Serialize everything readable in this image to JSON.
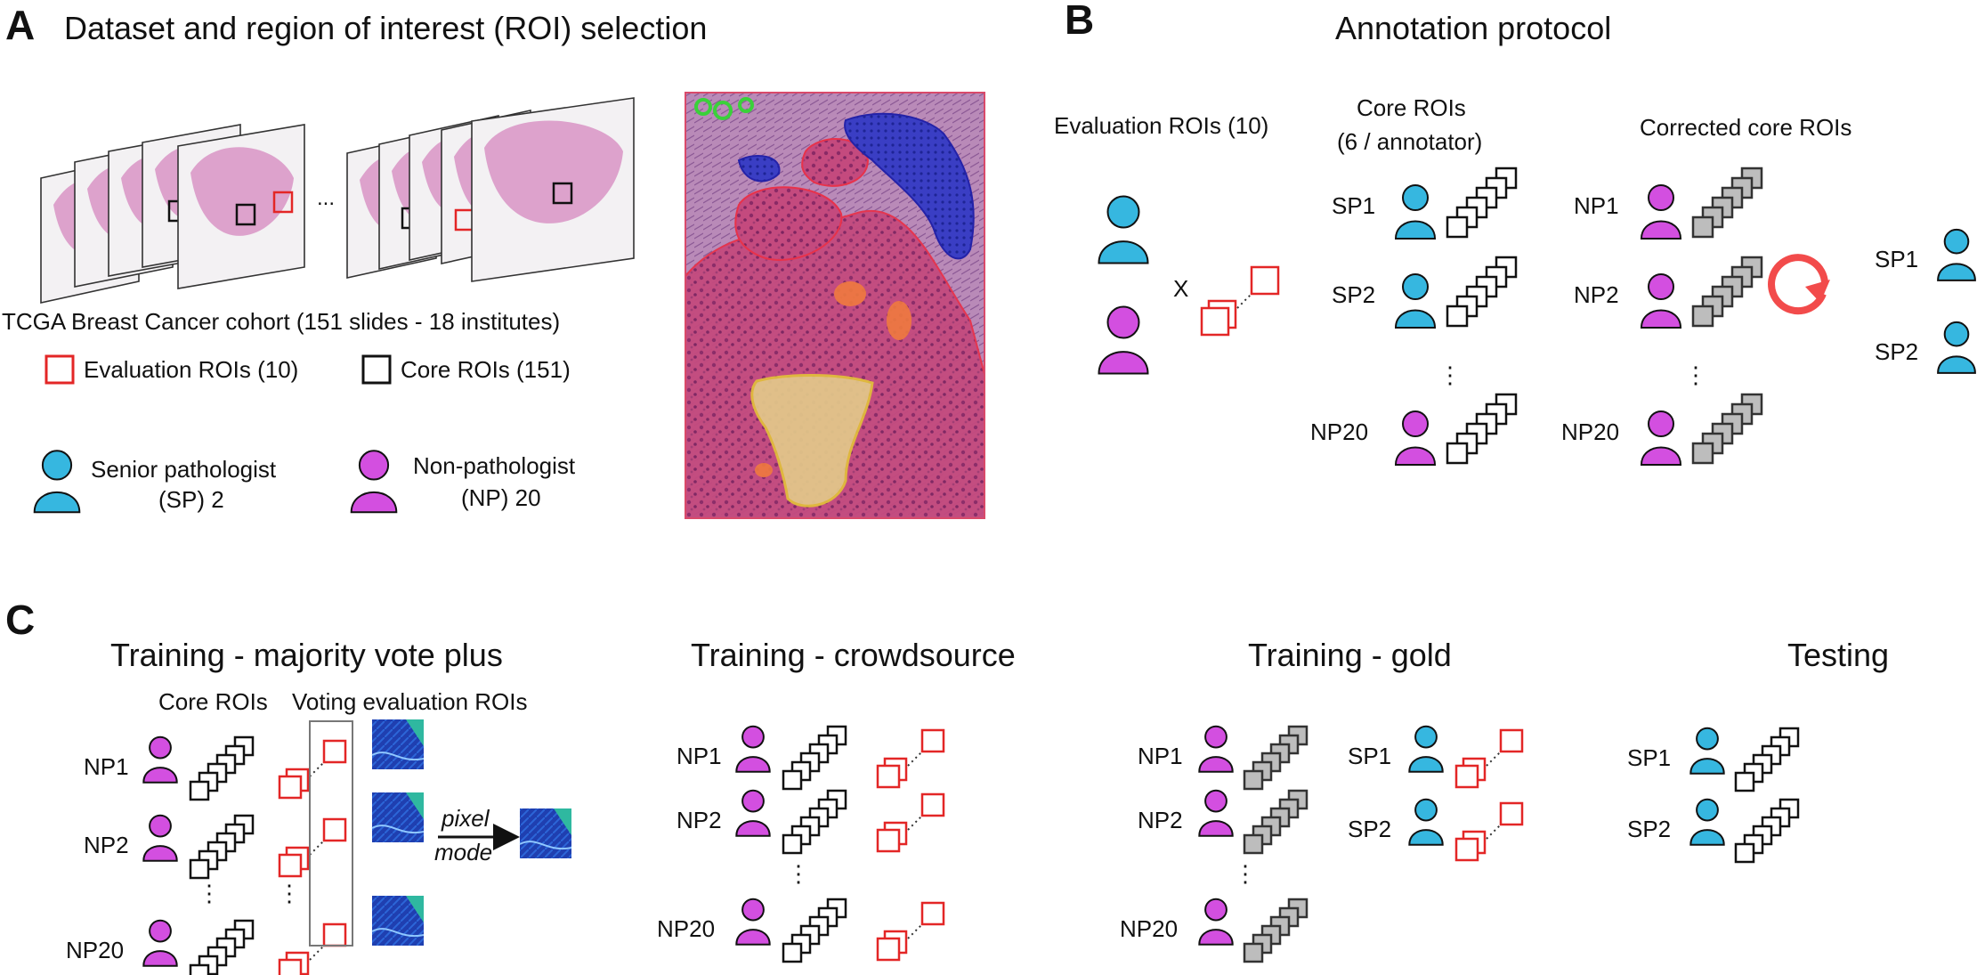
{
  "colors": {
    "senior": "#36B7E0",
    "non_pathologist": "#D34FE0",
    "evaluation_roi": "#E32626",
    "core_roi": "#111111",
    "corrected_fill": "#BDBDBD",
    "cycle_arrow": "#F24B4B"
  },
  "panel_a": {
    "letter": "A",
    "title": "Dataset and region of interest (ROI) selection",
    "ellipsis": "...",
    "cohort_label": "TCGA Breast Cancer cohort (151 slides - 18 institutes)",
    "legend_eval": "Evaluation ROIs (10)",
    "legend_core": "Core ROIs (151)",
    "senior_line1": "Senior pathologist",
    "senior_line2": "(SP) 2",
    "np_line1": "Non-pathologist",
    "np_line2": "(NP) 20"
  },
  "panel_b": {
    "letter": "B",
    "title": "Annotation protocol",
    "eval_header": "Evaluation ROIs (10)",
    "core_header_line1": "Core ROIs",
    "core_header_line2": "(6 / annotator)",
    "corrected_header": "Corrected core ROIs",
    "times": "X",
    "core_rows": [
      "SP1",
      "SP2",
      "NP20"
    ],
    "corrected_rows": [
      "NP1",
      "NP2",
      "NP20"
    ],
    "reviewers": [
      "SP1",
      "SP2"
    ],
    "vdots": "⋮"
  },
  "panel_c": {
    "letter": "C",
    "majority": {
      "title": "Training - majority vote plus",
      "core_header": "Core ROIs",
      "voting_header": "Voting evaluation ROIs",
      "rows": [
        "NP1",
        "NP2",
        "NP20"
      ],
      "pixel": "pixel",
      "mode": "mode"
    },
    "crowdsource": {
      "title": "Training - crowdsource",
      "rows": [
        "NP1",
        "NP2",
        "NP20"
      ]
    },
    "gold": {
      "title": "Training - gold",
      "rows": [
        "NP1",
        "NP2",
        "NP20"
      ],
      "sp_rows": [
        "SP1",
        "SP2"
      ]
    },
    "testing": {
      "title": "Testing",
      "rows": [
        "SP1",
        "SP2"
      ]
    },
    "vdots": "⋮"
  }
}
